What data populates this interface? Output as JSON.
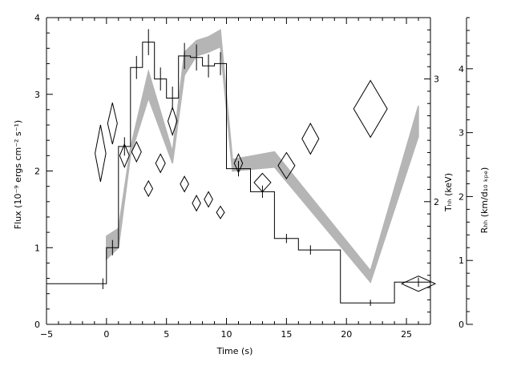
{
  "chart_data": {
    "type": "line",
    "xlabel": "Time (s)",
    "ylabel": "Flux (10⁻⁹ ergs cm⁻² s⁻¹)",
    "ylabel_right1": "Tₕₕ (keV)",
    "ylabel_right2": "Rₕₕ (km/d₁₀ ₖₚₑ)",
    "xlim": [
      -5,
      27
    ],
    "ylim": [
      0,
      4
    ],
    "x_ticks": [
      -5,
      0,
      5,
      10,
      15,
      20,
      25
    ],
    "x_tick_labels": [
      "−5",
      "0",
      "5",
      "10",
      "15",
      "20",
      "25"
    ],
    "y_ticks": [
      0,
      1,
      2,
      3,
      4
    ],
    "y_tick_labels": [
      "0",
      "1",
      "2",
      "3",
      "4"
    ],
    "right1_axis": {
      "ticks": [
        2,
        3
      ],
      "tick_labels": [
        "2",
        "3"
      ],
      "lim": [
        1,
        3.5
      ]
    },
    "right2_axis": {
      "ticks": [
        0,
        1,
        2,
        3,
        4
      ],
      "tick_labels": [
        "0",
        "1",
        "2",
        "3",
        "4"
      ],
      "lim": [
        0,
        4.8
      ]
    },
    "series": [
      {
        "kind": "flux-step-histogram",
        "bins": [
          {
            "x0": -5,
            "x1": 0,
            "y": 0.53,
            "err": 0.07,
            "xc": -0.3
          },
          {
            "x0": 0,
            "x1": 1,
            "y": 1.0,
            "err": 0.1,
            "xc": 0.5
          },
          {
            "x0": 1,
            "x1": 2,
            "y": 2.32,
            "err": 0.12,
            "xc": 1.5
          },
          {
            "x0": 2,
            "x1": 3,
            "y": 3.35,
            "err": 0.15,
            "xc": 2.5
          },
          {
            "x0": 3,
            "x1": 4,
            "y": 3.68,
            "err": 0.17,
            "xc": 3.5
          },
          {
            "x0": 4,
            "x1": 5,
            "y": 3.2,
            "err": 0.15,
            "xc": 4.5
          },
          {
            "x0": 5,
            "x1": 6,
            "y": 2.95,
            "err": 0.15,
            "xc": 5.5
          },
          {
            "x0": 6,
            "x1": 7,
            "y": 3.5,
            "err": 0.17,
            "xc": 6.5
          },
          {
            "x0": 7,
            "x1": 8,
            "y": 3.48,
            "err": 0.17,
            "xc": 7.5
          },
          {
            "x0": 8,
            "x1": 9,
            "y": 3.37,
            "err": 0.15,
            "xc": 8.5
          },
          {
            "x0": 9,
            "x1": 10,
            "y": 3.4,
            "err": 0.15,
            "xc": 9.5
          },
          {
            "x0": 10,
            "x1": 12,
            "y": 2.03,
            "err": 0.1,
            "xc": 11
          },
          {
            "x0": 12,
            "x1": 14,
            "y": 1.73,
            "err": 0.08,
            "xc": 13
          },
          {
            "x0": 14,
            "x1": 16,
            "y": 1.12,
            "err": 0.06,
            "xc": 15
          },
          {
            "x0": 16,
            "x1": 19.5,
            "y": 0.97,
            "err": 0.06,
            "xc": 17
          },
          {
            "x0": 19.5,
            "x1": 24,
            "y": 0.28,
            "err": 0.04,
            "xc": 22
          },
          {
            "x0": 24,
            "x1": 27,
            "y": 0.55,
            "err": 0.06,
            "xc": 26
          }
        ]
      },
      {
        "kind": "temperature-diamonds",
        "axis": "left-scale",
        "points": [
          {
            "x": -0.5,
            "y": 2.23,
            "dx": 0.45,
            "dy": 0.37
          },
          {
            "x": 0.5,
            "y": 2.62,
            "dx": 0.4,
            "dy": 0.27
          },
          {
            "x": 1.5,
            "y": 2.2,
            "dx": 0.4,
            "dy": 0.15
          },
          {
            "x": 2.5,
            "y": 2.25,
            "dx": 0.4,
            "dy": 0.13
          },
          {
            "x": 3.5,
            "y": 1.77,
            "dx": 0.35,
            "dy": 0.1
          },
          {
            "x": 4.5,
            "y": 2.1,
            "dx": 0.4,
            "dy": 0.12
          },
          {
            "x": 5.5,
            "y": 2.65,
            "dx": 0.38,
            "dy": 0.18
          },
          {
            "x": 6.5,
            "y": 1.83,
            "dx": 0.35,
            "dy": 0.1
          },
          {
            "x": 7.5,
            "y": 1.58,
            "dx": 0.35,
            "dy": 0.1
          },
          {
            "x": 8.5,
            "y": 1.63,
            "dx": 0.35,
            "dy": 0.1
          },
          {
            "x": 9.5,
            "y": 1.46,
            "dx": 0.33,
            "dy": 0.08
          },
          {
            "x": 11,
            "y": 2.1,
            "dx": 0.35,
            "dy": 0.12
          },
          {
            "x": 13,
            "y": 1.85,
            "dx": 0.7,
            "dy": 0.12
          },
          {
            "x": 15,
            "y": 2.07,
            "dx": 0.7,
            "dy": 0.17
          },
          {
            "x": 17,
            "y": 2.42,
            "dx": 0.7,
            "dy": 0.2
          },
          {
            "x": 22,
            "y": 2.81,
            "dx": 1.4,
            "dy": 0.37
          },
          {
            "x": 26,
            "y": 0.53,
            "dx": 1.4,
            "dy": 0.1
          }
        ]
      },
      {
        "kind": "radius-band",
        "axis": "left-scale",
        "points": [
          {
            "x": 0,
            "low": 0.85,
            "high": 1.15
          },
          {
            "x": 1,
            "low": 1.0,
            "high": 1.25
          },
          {
            "x": 2,
            "low": 2.2,
            "high": 2.3
          },
          {
            "x": 3.5,
            "low": 2.95,
            "high": 3.3
          },
          {
            "x": 5.5,
            "low": 2.1,
            "high": 2.25
          },
          {
            "x": 6.5,
            "low": 3.25,
            "high": 3.55
          },
          {
            "x": 7.5,
            "low": 3.5,
            "high": 3.7
          },
          {
            "x": 8.5,
            "low": 3.55,
            "high": 3.75
          },
          {
            "x": 9.5,
            "low": 3.62,
            "high": 3.84
          },
          {
            "x": 10.5,
            "low": 2.0,
            "high": 2.15
          },
          {
            "x": 14,
            "low": 2.05,
            "high": 2.25
          },
          {
            "x": 22,
            "low": 0.55,
            "high": 0.7
          },
          {
            "x": 26,
            "low": 2.45,
            "high": 2.85
          }
        ]
      }
    ],
    "grid": false,
    "legend": "none"
  }
}
